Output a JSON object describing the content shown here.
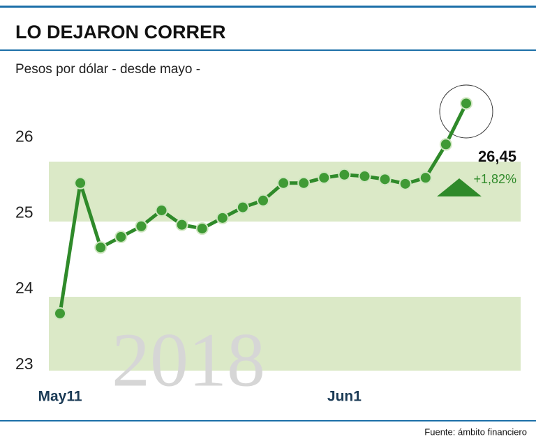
{
  "chart_data": {
    "type": "line",
    "title": "LO DEJARON CORRER",
    "subtitle": "Pesos por dólar - desde mayo -",
    "source": "Fuente: ámbito financiero",
    "watermark": "2018",
    "annotation": "+1,82%",
    "categories": [
      "May11",
      null,
      null,
      null,
      null,
      null,
      null,
      null,
      null,
      null,
      null,
      null,
      null,
      null,
      "Jun1",
      null,
      null,
      null,
      null,
      null,
      null
    ],
    "series": [
      {
        "name": "Pesos por dólar",
        "color": "#2f8a2a",
        "values": [
          23.68,
          25.4,
          24.55,
          24.69,
          24.83,
          25.04,
          24.85,
          24.8,
          24.94,
          25.08,
          25.17,
          25.4,
          25.4,
          25.47,
          25.51,
          25.49,
          25.45,
          25.39,
          25.47,
          25.91,
          26.45
        ],
        "value_labels": [
          null,
          null,
          null,
          null,
          null,
          null,
          null,
          null,
          null,
          null,
          null,
          null,
          null,
          null,
          null,
          null,
          null,
          null,
          null,
          null,
          "26,45"
        ]
      }
    ],
    "ylim": [
      23,
      26.9
    ],
    "yticks": [
      23,
      24,
      25,
      26
    ]
  }
}
